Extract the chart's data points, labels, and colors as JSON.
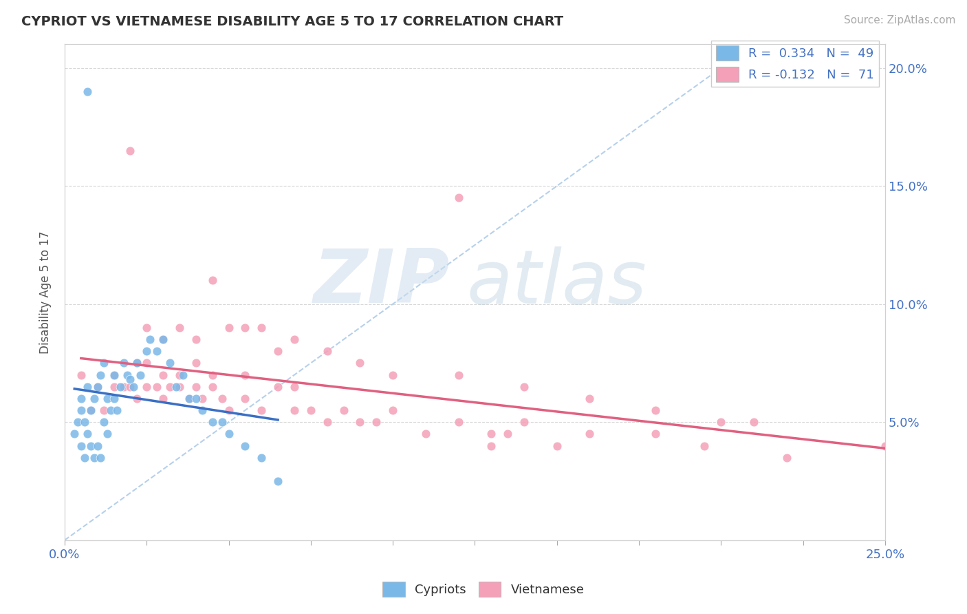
{
  "title": "CYPRIOT VS VIETNAMESE DISABILITY AGE 5 TO 17 CORRELATION CHART",
  "source": "Source: ZipAtlas.com",
  "ylabel": "Disability Age 5 to 17",
  "xmin": 0.0,
  "xmax": 0.25,
  "ymin": 0.0,
  "ymax": 0.21,
  "legend_r1": "R =  0.334",
  "legend_n1": "N =  49",
  "legend_r2": "R = -0.132",
  "legend_n2": "N =  71",
  "color_cypriot": "#7ab8e8",
  "color_cypriot_line": "#3a6fc4",
  "color_vietnamese": "#f4a0b8",
  "color_vietnamese_line": "#e06080",
  "color_diag": "#aac8e8",
  "background": "#ffffff",
  "cypriot_x": [
    0.003,
    0.004,
    0.005,
    0.005,
    0.005,
    0.006,
    0.006,
    0.007,
    0.007,
    0.008,
    0.008,
    0.009,
    0.009,
    0.01,
    0.01,
    0.011,
    0.011,
    0.012,
    0.012,
    0.013,
    0.013,
    0.014,
    0.015,
    0.015,
    0.016,
    0.017,
    0.018,
    0.019,
    0.02,
    0.021,
    0.022,
    0.023,
    0.025,
    0.026,
    0.028,
    0.03,
    0.032,
    0.034,
    0.036,
    0.038,
    0.04,
    0.042,
    0.045,
    0.048,
    0.05,
    0.055,
    0.06,
    0.065,
    0.007
  ],
  "cypriot_y": [
    0.045,
    0.05,
    0.04,
    0.055,
    0.06,
    0.035,
    0.05,
    0.045,
    0.065,
    0.04,
    0.055,
    0.035,
    0.06,
    0.04,
    0.065,
    0.035,
    0.07,
    0.05,
    0.075,
    0.045,
    0.06,
    0.055,
    0.06,
    0.07,
    0.055,
    0.065,
    0.075,
    0.07,
    0.068,
    0.065,
    0.075,
    0.07,
    0.08,
    0.085,
    0.08,
    0.085,
    0.075,
    0.065,
    0.07,
    0.06,
    0.06,
    0.055,
    0.05,
    0.05,
    0.045,
    0.04,
    0.035,
    0.025,
    0.19
  ],
  "vietnamese_x": [
    0.005,
    0.008,
    0.01,
    0.012,
    0.015,
    0.015,
    0.018,
    0.02,
    0.022,
    0.022,
    0.025,
    0.025,
    0.028,
    0.03,
    0.03,
    0.032,
    0.035,
    0.035,
    0.038,
    0.04,
    0.04,
    0.042,
    0.045,
    0.045,
    0.048,
    0.05,
    0.055,
    0.055,
    0.06,
    0.065,
    0.07,
    0.07,
    0.075,
    0.08,
    0.085,
    0.09,
    0.095,
    0.1,
    0.11,
    0.12,
    0.13,
    0.135,
    0.14,
    0.15,
    0.16,
    0.18,
    0.195,
    0.21,
    0.22,
    0.03,
    0.04,
    0.05,
    0.06,
    0.065,
    0.07,
    0.08,
    0.09,
    0.1,
    0.12,
    0.14,
    0.16,
    0.18,
    0.2,
    0.25,
    0.12,
    0.13,
    0.02,
    0.025,
    0.035,
    0.045,
    0.055
  ],
  "vietnamese_y": [
    0.07,
    0.055,
    0.065,
    0.055,
    0.07,
    0.065,
    0.065,
    0.065,
    0.06,
    0.075,
    0.065,
    0.075,
    0.065,
    0.06,
    0.07,
    0.065,
    0.065,
    0.07,
    0.06,
    0.065,
    0.075,
    0.06,
    0.065,
    0.07,
    0.06,
    0.055,
    0.06,
    0.07,
    0.055,
    0.065,
    0.055,
    0.065,
    0.055,
    0.05,
    0.055,
    0.05,
    0.05,
    0.055,
    0.045,
    0.05,
    0.045,
    0.045,
    0.05,
    0.04,
    0.045,
    0.045,
    0.04,
    0.05,
    0.035,
    0.085,
    0.085,
    0.09,
    0.09,
    0.08,
    0.085,
    0.08,
    0.075,
    0.07,
    0.07,
    0.065,
    0.06,
    0.055,
    0.05,
    0.04,
    0.145,
    0.04,
    0.165,
    0.09,
    0.09,
    0.11,
    0.09
  ]
}
